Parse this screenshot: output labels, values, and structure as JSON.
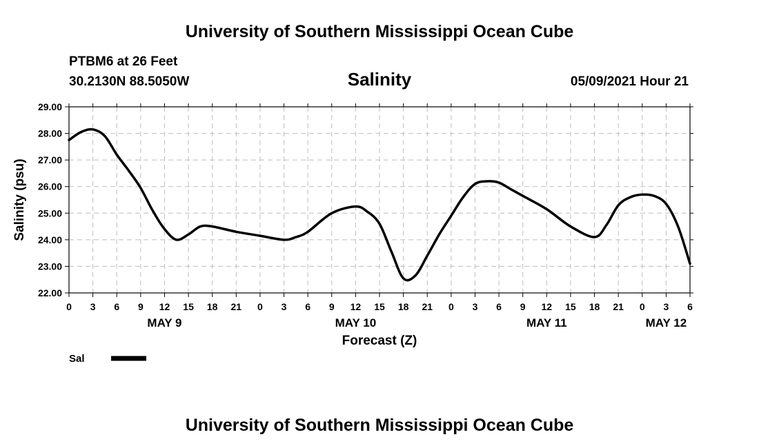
{
  "header": {
    "title": "University of Southern Mississippi Ocean Cube",
    "station": "PTBM6 at 26 Feet",
    "coords": "30.2130N  88.5050W",
    "timestamp": "05/09/2021 Hour 21"
  },
  "footer": {
    "title": "University of Southern Mississippi Ocean Cube"
  },
  "legend": {
    "label": "Sal",
    "color": "#000000"
  },
  "chart_data": {
    "type": "line",
    "title": "Salinity",
    "xlabel": "Forecast (Z)",
    "ylabel": "Salinity (psu)",
    "ylim": [
      22,
      29
    ],
    "xlim": [
      0,
      78
    ],
    "y_ticks": [
      "22.00",
      "23.00",
      "24.00",
      "25.00",
      "26.00",
      "27.00",
      "28.00",
      "29.00"
    ],
    "x_tick_labels": [
      "0",
      "3",
      "6",
      "9",
      "12",
      "15",
      "18",
      "21",
      "0",
      "3",
      "6",
      "9",
      "12",
      "15",
      "18",
      "21",
      "0",
      "3",
      "6",
      "9",
      "12",
      "15",
      "18",
      "21",
      "0",
      "3",
      "6"
    ],
    "day_labels": [
      {
        "label": "MAY 9",
        "hour": 12
      },
      {
        "label": "MAY 10",
        "hour": 36
      },
      {
        "label": "MAY 11",
        "hour": 60
      },
      {
        "label": "MAY 12",
        "hour": 75
      }
    ],
    "grid": true,
    "series": [
      {
        "name": "Sal",
        "x": [
          0,
          1.5,
          3,
          4.5,
          6,
          7.5,
          9,
          10.5,
          12,
          13.5,
          15,
          16.5,
          18,
          21,
          24,
          27,
          28.5,
          30,
          33,
          36,
          37.5,
          39,
          40.5,
          42,
          43.5,
          45,
          46.5,
          48,
          49.5,
          51,
          52.5,
          54,
          55.5,
          57,
          60,
          63,
          66,
          67.5,
          69,
          70.5,
          72,
          73.5,
          75,
          76.5,
          78
        ],
        "values": [
          27.75,
          28.05,
          28.15,
          27.9,
          27.2,
          26.6,
          25.95,
          25.1,
          24.4,
          24.0,
          24.2,
          24.5,
          24.5,
          24.3,
          24.15,
          24.0,
          24.1,
          24.3,
          25.0,
          25.25,
          25.05,
          24.6,
          23.55,
          22.55,
          22.65,
          23.4,
          24.2,
          24.9,
          25.6,
          26.1,
          26.2,
          26.15,
          25.9,
          25.65,
          25.15,
          24.5,
          24.1,
          24.55,
          25.3,
          25.6,
          25.7,
          25.65,
          25.35,
          24.5,
          23.1
        ]
      }
    ]
  }
}
